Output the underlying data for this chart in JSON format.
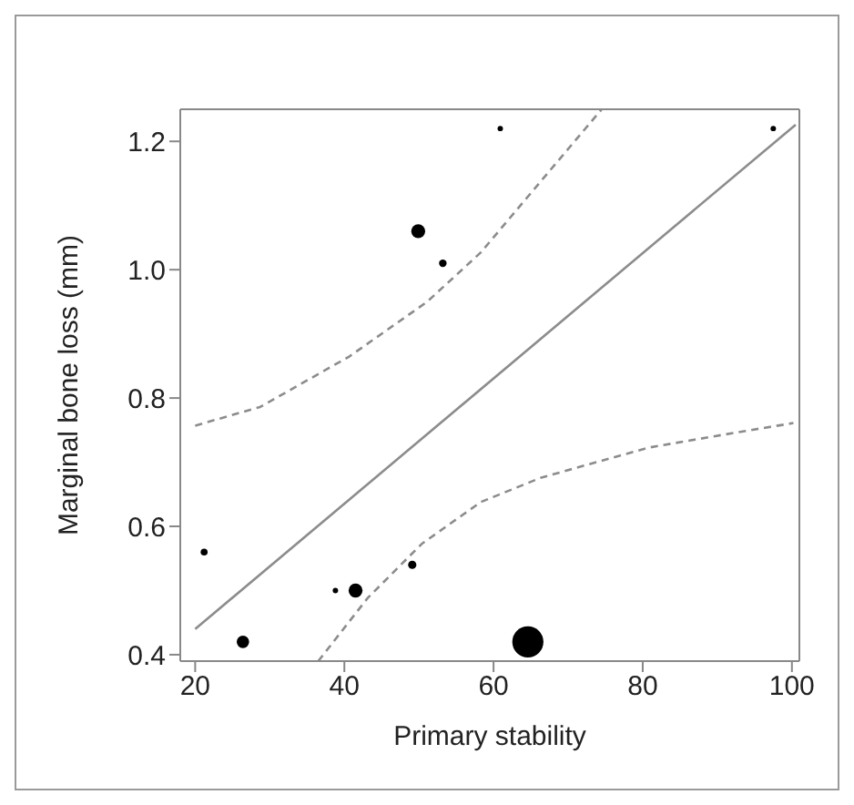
{
  "chart_data": {
    "type": "bubble",
    "xlabel": "Primary stability",
    "ylabel": "Marginal bone loss (mm)",
    "xlim": [
      18,
      101
    ],
    "ylim": [
      0.39,
      1.25
    ],
    "xticks": [
      20,
      40,
      60,
      80,
      100
    ],
    "yticks": [
      {
        "value": 0.4,
        "label": "0.4"
      },
      {
        "value": 0.6,
        "label": "0.6"
      },
      {
        "value": 0.8,
        "label": "0.8"
      },
      {
        "value": 1.0,
        "label": "1.0"
      },
      {
        "value": 1.2,
        "label": "1.2"
      }
    ],
    "grid": false,
    "marker": "circle",
    "series": [
      {
        "color": "#000000",
        "x": [
          21.2,
          26.4,
          38.8,
          41.5,
          49.1,
          49.9,
          53.2,
          60.9,
          64.6,
          97.5
        ],
        "values": [
          0.56,
          0.42,
          0.5,
          0.5,
          0.54,
          1.06,
          1.01,
          1.22,
          0.42,
          1.22
        ],
        "sizes": [
          0.05,
          0.16,
          0.03,
          0.2,
          0.07,
          0.2,
          0.06,
          0.03,
          1,
          0.03
        ]
      },
      {
        "type": "line",
        "color": "#8c8c8c",
        "line_style": "solid",
        "marker": "none",
        "x": [
          20,
          100.5
        ],
        "values": [
          0.44,
          1.226
        ]
      },
      {
        "type": "line",
        "color": "#8c8c8c",
        "line_style": "dashed",
        "marker": "none",
        "x": [
          20,
          28.7,
          40.7,
          51.1,
          58.3,
          66.5,
          74.5
        ],
        "values": [
          0.757,
          0.786,
          0.865,
          0.95,
          1.027,
          1.14,
          1.25
        ]
      },
      {
        "type": "line",
        "color": "#8c8c8c",
        "line_style": "dashed",
        "marker": "none",
        "x": [
          36.5,
          43.1,
          50.4,
          58.3,
          66.4,
          80.9,
          92.9,
          100.2
        ],
        "values": [
          0.39,
          0.488,
          0.573,
          0.638,
          0.676,
          0.723,
          0.747,
          0.761
        ]
      }
    ]
  }
}
